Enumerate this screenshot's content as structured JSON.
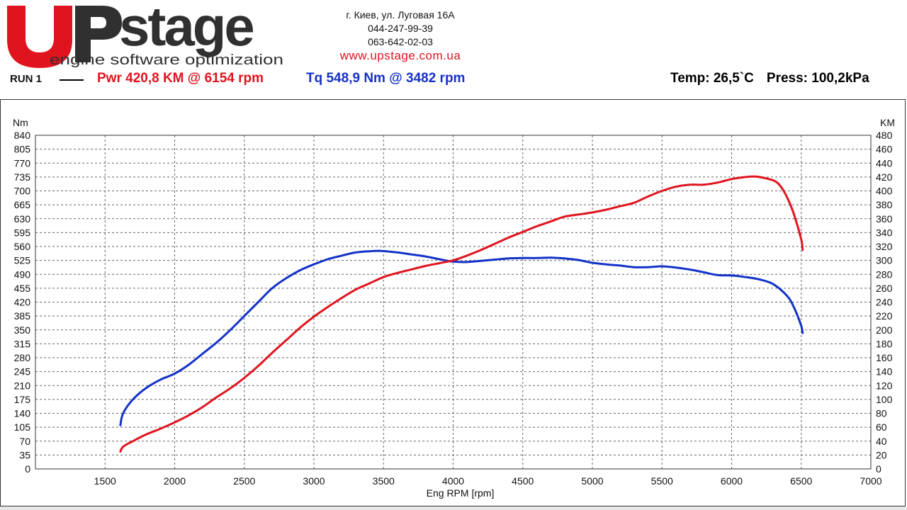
{
  "brand": {
    "logo_main": "stage",
    "logo_sub": "engine software optimization",
    "colors": {
      "red": "#e0141e",
      "dark": "#303030"
    }
  },
  "contacts": {
    "address": "г. Киев, ул. Луговая 16А",
    "phone1": "044-247-99-39",
    "phone2": "063-642-02-03",
    "website": "www.upstage.com.ua"
  },
  "run": {
    "label": "RUN 1",
    "power_summary": "Pwr  420,8 KM @ 6154 rpm",
    "torque_summary": "Tq 548,9 Nm @ 3482 rpm",
    "temperature": "Temp: 26,5`C",
    "pressure": "Press: 100,2kPa"
  },
  "chart_data": {
    "type": "line",
    "xlabel": "Eng RPM [rpm]",
    "ylabel_left": "Nm",
    "ylabel_right": "KM",
    "xlim": [
      1000,
      7000
    ],
    "ylim_left": [
      0,
      840
    ],
    "ylim_right": [
      0,
      480
    ],
    "x_ticks": [
      "1500",
      "2000",
      "2500",
      "3000",
      "3500",
      "4000",
      "4500",
      "5000",
      "5500",
      "6000",
      "6500",
      "7000"
    ],
    "y_ticks_left": [
      "0",
      "35",
      "70",
      "105",
      "140",
      "175",
      "210",
      "245",
      "280",
      "315",
      "350",
      "385",
      "420",
      "455",
      "490",
      "525",
      "560",
      "595",
      "630",
      "665",
      "700",
      "735",
      "770",
      "805",
      "840"
    ],
    "y_ticks_right": [
      "0",
      "20",
      "40",
      "60",
      "80",
      "100",
      "120",
      "140",
      "160",
      "180",
      "200",
      "220",
      "240",
      "260",
      "280",
      "300",
      "320",
      "340",
      "360",
      "380",
      "400",
      "420",
      "440",
      "460",
      "480"
    ],
    "grid": true,
    "legend": "none",
    "series": [
      {
        "axis": "left",
        "color": "#1432c8",
        "points": [
          [
            1610,
            110
          ],
          [
            1630,
            140
          ],
          [
            1700,
            175
          ],
          [
            1800,
            205
          ],
          [
            1900,
            225
          ],
          [
            2000,
            240
          ],
          [
            2100,
            262
          ],
          [
            2200,
            290
          ],
          [
            2300,
            318
          ],
          [
            2400,
            350
          ],
          [
            2500,
            385
          ],
          [
            2600,
            420
          ],
          [
            2700,
            455
          ],
          [
            2800,
            480
          ],
          [
            2900,
            500
          ],
          [
            3000,
            515
          ],
          [
            3100,
            528
          ],
          [
            3200,
            537
          ],
          [
            3300,
            545
          ],
          [
            3400,
            548
          ],
          [
            3482,
            548.9
          ],
          [
            3600,
            545
          ],
          [
            3700,
            540
          ],
          [
            3800,
            535
          ],
          [
            3900,
            528
          ],
          [
            4000,
            522
          ],
          [
            4100,
            521
          ],
          [
            4200,
            524
          ],
          [
            4300,
            527
          ],
          [
            4400,
            530
          ],
          [
            4500,
            531
          ],
          [
            4600,
            531
          ],
          [
            4700,
            532
          ],
          [
            4800,
            530
          ],
          [
            4900,
            526
          ],
          [
            5000,
            519
          ],
          [
            5100,
            515
          ],
          [
            5200,
            512
          ],
          [
            5300,
            508
          ],
          [
            5400,
            508
          ],
          [
            5500,
            510
          ],
          [
            5600,
            507
          ],
          [
            5700,
            502
          ],
          [
            5800,
            495
          ],
          [
            5900,
            488
          ],
          [
            6000,
            487
          ],
          [
            6100,
            483
          ],
          [
            6200,
            477
          ],
          [
            6300,
            465
          ],
          [
            6400,
            435
          ],
          [
            6450,
            405
          ],
          [
            6500,
            360
          ],
          [
            6510,
            342
          ]
        ]
      },
      {
        "axis": "right",
        "color": "#e0141e",
        "points": [
          [
            1610,
            25
          ],
          [
            1630,
            32
          ],
          [
            1700,
            40
          ],
          [
            1800,
            50
          ],
          [
            1900,
            58
          ],
          [
            2000,
            67
          ],
          [
            2100,
            77
          ],
          [
            2200,
            89
          ],
          [
            2300,
            103
          ],
          [
            2400,
            116
          ],
          [
            2500,
            131
          ],
          [
            2600,
            148
          ],
          [
            2700,
            167
          ],
          [
            2800,
            185
          ],
          [
            2900,
            203
          ],
          [
            3000,
            219
          ],
          [
            3100,
            233
          ],
          [
            3200,
            246
          ],
          [
            3300,
            258
          ],
          [
            3400,
            267
          ],
          [
            3500,
            276
          ],
          [
            3600,
            282
          ],
          [
            3700,
            287
          ],
          [
            3800,
            292
          ],
          [
            3900,
            296
          ],
          [
            4000,
            300
          ],
          [
            4100,
            307
          ],
          [
            4200,
            315
          ],
          [
            4300,
            324
          ],
          [
            4400,
            333
          ],
          [
            4500,
            341
          ],
          [
            4600,
            349
          ],
          [
            4700,
            356
          ],
          [
            4800,
            363
          ],
          [
            4900,
            366
          ],
          [
            5000,
            369
          ],
          [
            5100,
            373
          ],
          [
            5200,
            378
          ],
          [
            5300,
            383
          ],
          [
            5400,
            392
          ],
          [
            5500,
            400
          ],
          [
            5600,
            406
          ],
          [
            5700,
            409
          ],
          [
            5800,
            409
          ],
          [
            5900,
            412
          ],
          [
            6000,
            417
          ],
          [
            6100,
            420
          ],
          [
            6154,
            420.8
          ],
          [
            6200,
            420
          ],
          [
            6300,
            415
          ],
          [
            6350,
            407
          ],
          [
            6400,
            390
          ],
          [
            6450,
            365
          ],
          [
            6500,
            330
          ],
          [
            6510,
            315
          ]
        ]
      }
    ]
  }
}
